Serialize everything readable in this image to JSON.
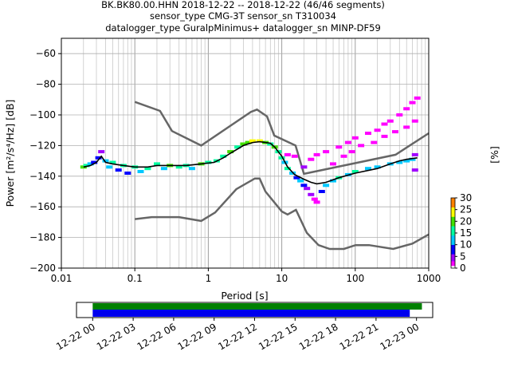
{
  "title": {
    "line1": "BK.BK80.00.HHN   2018-12-22 -- 2018-12-22  (46/46 segments)",
    "line2": "sensor_type CMG-3T sensor_sn T310034",
    "line3": "datalogger_type GuralpMinimus+ datalogger_sn MINP-DF59"
  },
  "chart_data": {
    "type": "heatmap",
    "xlabel": "Period [s]",
    "ylabel": "Power [m²/s⁴/Hz] [dB]",
    "xscale": "log",
    "xlim": [
      0.01,
      1000
    ],
    "ylim": [
      -200,
      -50
    ],
    "xticks": [
      {
        "value": 0.01,
        "label": "0.01"
      },
      {
        "value": 0.1,
        "label": "0.1"
      },
      {
        "value": 1,
        "label": "1"
      },
      {
        "value": 10,
        "label": "10"
      },
      {
        "value": 100,
        "label": "100"
      },
      {
        "value": 1000,
        "label": "1000"
      }
    ],
    "yticks": [
      -200,
      -180,
      -160,
      -140,
      -120,
      -100,
      -80,
      -60
    ],
    "grid": true,
    "colorbar": {
      "label": "[%]",
      "ticks": [
        0,
        5,
        10,
        15,
        20,
        25,
        30
      ],
      "range": [
        0,
        30
      ]
    },
    "noise_model_high": [
      [
        0.1,
        -91.5
      ],
      [
        0.22,
        -97.4
      ],
      [
        0.32,
        -110.5
      ],
      [
        0.8,
        -120
      ],
      [
        3.8,
        -98
      ],
      [
        4.6,
        -96.5
      ],
      [
        6.3,
        -101
      ],
      [
        7.9,
        -113.5
      ],
      [
        15.4,
        -120
      ],
      [
        20,
        -138.5
      ],
      [
        354,
        -126
      ],
      [
        1000,
        -112
      ]
    ],
    "noise_model_low": [
      [
        0.1,
        -168
      ],
      [
        0.17,
        -166.7
      ],
      [
        0.4,
        -166.7
      ],
      [
        0.8,
        -169.2
      ],
      [
        1.24,
        -163.7
      ],
      [
        2.4,
        -148.5
      ],
      [
        4.3,
        -141.5
      ],
      [
        5,
        -141.5
      ],
      [
        6,
        -150
      ],
      [
        10,
        -163
      ],
      [
        12,
        -165
      ],
      [
        15.6,
        -162
      ],
      [
        21.9,
        -177
      ],
      [
        31.6,
        -185
      ],
      [
        45,
        -187.5
      ],
      [
        70,
        -187.5
      ],
      [
        101,
        -185
      ],
      [
        154,
        -185
      ],
      [
        328,
        -187.5
      ],
      [
        600,
        -184
      ],
      [
        1000,
        -178
      ]
    ],
    "median_curve": [
      [
        0.02,
        -134
      ],
      [
        0.025,
        -133
      ],
      [
        0.03,
        -131
      ],
      [
        0.035,
        -127
      ],
      [
        0.04,
        -131
      ],
      [
        0.05,
        -132
      ],
      [
        0.07,
        -133
      ],
      [
        0.1,
        -134
      ],
      [
        0.15,
        -134
      ],
      [
        0.2,
        -133
      ],
      [
        0.3,
        -133
      ],
      [
        0.5,
        -133
      ],
      [
        0.8,
        -132
      ],
      [
        1.2,
        -131
      ],
      [
        1.6,
        -128
      ],
      [
        2,
        -125
      ],
      [
        3,
        -120
      ],
      [
        4,
        -118
      ],
      [
        5,
        -117.5
      ],
      [
        6,
        -118
      ],
      [
        7,
        -118.5
      ],
      [
        8,
        -121
      ],
      [
        10,
        -127
      ],
      [
        12,
        -134
      ],
      [
        15,
        -139
      ],
      [
        20,
        -142
      ],
      [
        25,
        -144
      ],
      [
        30,
        -145
      ],
      [
        40,
        -144
      ],
      [
        60,
        -141
      ],
      [
        100,
        -138
      ],
      [
        200,
        -135
      ],
      [
        300,
        -132
      ],
      [
        400,
        -130
      ],
      [
        500,
        -129
      ],
      [
        700,
        -128
      ]
    ],
    "ppsd_points": [
      [
        0.02,
        -134,
        18
      ],
      [
        0.022,
        -133,
        14
      ],
      [
        0.025,
        -132,
        12
      ],
      [
        0.028,
        -131,
        8
      ],
      [
        0.032,
        -128,
        6
      ],
      [
        0.035,
        -124,
        4
      ],
      [
        0.04,
        -130,
        10
      ],
      [
        0.045,
        -134,
        12
      ],
      [
        0.05,
        -131,
        16
      ],
      [
        0.06,
        -136,
        8
      ],
      [
        0.07,
        -133,
        15
      ],
      [
        0.08,
        -138,
        6
      ],
      [
        0.1,
        -134,
        14
      ],
      [
        0.12,
        -137,
        10
      ],
      [
        0.15,
        -135,
        14
      ],
      [
        0.2,
        -132,
        16
      ],
      [
        0.25,
        -135,
        12
      ],
      [
        0.3,
        -133,
        18
      ],
      [
        0.4,
        -134,
        14
      ],
      [
        0.5,
        -133,
        16
      ],
      [
        0.6,
        -135,
        10
      ],
      [
        0.8,
        -132,
        18
      ],
      [
        1,
        -131,
        16
      ],
      [
        1.3,
        -130,
        14
      ],
      [
        1.6,
        -127,
        16
      ],
      [
        2,
        -124,
        18
      ],
      [
        2.5,
        -121,
        16
      ],
      [
        3,
        -119,
        20
      ],
      [
        3.5,
        -118,
        18
      ],
      [
        4,
        -117,
        22
      ],
      [
        5,
        -117,
        24
      ],
      [
        6,
        -118,
        20
      ],
      [
        7,
        -119,
        14
      ],
      [
        8,
        -121,
        18
      ],
      [
        9,
        -124,
        14
      ],
      [
        10,
        -128,
        16
      ],
      [
        11,
        -131,
        12
      ],
      [
        12,
        -135,
        14
      ],
      [
        14,
        -138,
        10
      ],
      [
        16,
        -141,
        8
      ],
      [
        18,
        -143,
        10
      ],
      [
        20,
        -146,
        6
      ],
      [
        22,
        -148,
        4
      ],
      [
        25,
        -152,
        3
      ],
      [
        28,
        -155,
        2
      ],
      [
        30,
        -157,
        2
      ],
      [
        35,
        -150,
        6
      ],
      [
        40,
        -146,
        10
      ],
      [
        50,
        -143,
        12
      ],
      [
        60,
        -141,
        14
      ],
      [
        80,
        -139,
        12
      ],
      [
        100,
        -137,
        14
      ],
      [
        150,
        -135,
        12
      ],
      [
        200,
        -134,
        10
      ],
      [
        300,
        -132,
        12
      ],
      [
        400,
        -131,
        10
      ],
      [
        500,
        -130,
        12
      ],
      [
        600,
        -129,
        10
      ],
      [
        650,
        -136,
        4
      ],
      [
        650,
        -126,
        4
      ],
      [
        20,
        -134,
        3
      ],
      [
        25,
        -129,
        2
      ],
      [
        30,
        -126,
        2
      ],
      [
        40,
        -124,
        2
      ],
      [
        60,
        -121,
        2
      ],
      [
        80,
        -118,
        2
      ],
      [
        100,
        -115,
        2
      ],
      [
        150,
        -112,
        2
      ],
      [
        200,
        -110,
        2
      ],
      [
        250,
        -106,
        2
      ],
      [
        300,
        -104,
        2
      ],
      [
        400,
        -100,
        2
      ],
      [
        500,
        -96,
        2
      ],
      [
        600,
        -92,
        2
      ],
      [
        700,
        -89,
        2
      ],
      [
        15,
        -127,
        2
      ],
      [
        12,
        -126,
        2
      ],
      [
        50,
        -132,
        2
      ],
      [
        70,
        -127,
        2
      ],
      [
        90,
        -124,
        2
      ],
      [
        120,
        -120,
        2
      ],
      [
        180,
        -118,
        2
      ],
      [
        250,
        -114,
        2
      ],
      [
        350,
        -111,
        2
      ],
      [
        500,
        -108,
        2
      ],
      [
        650,
        -104,
        2
      ]
    ],
    "timeline": {
      "tick_labels": [
        "12-22 00",
        "12-22 03",
        "12-22 06",
        "12-22 09",
        "12-22 12",
        "12-22 15",
        "12-22 18",
        "12-22 21",
        "12-23 00"
      ],
      "bars": [
        {
          "color": "#008000",
          "start_hour": 0,
          "end_hour": 24.4
        },
        {
          "color": "#0000ee",
          "start_hour": 0,
          "end_hour": 23.5
        }
      ],
      "range_hours": [
        -1.2,
        25.2
      ]
    }
  }
}
